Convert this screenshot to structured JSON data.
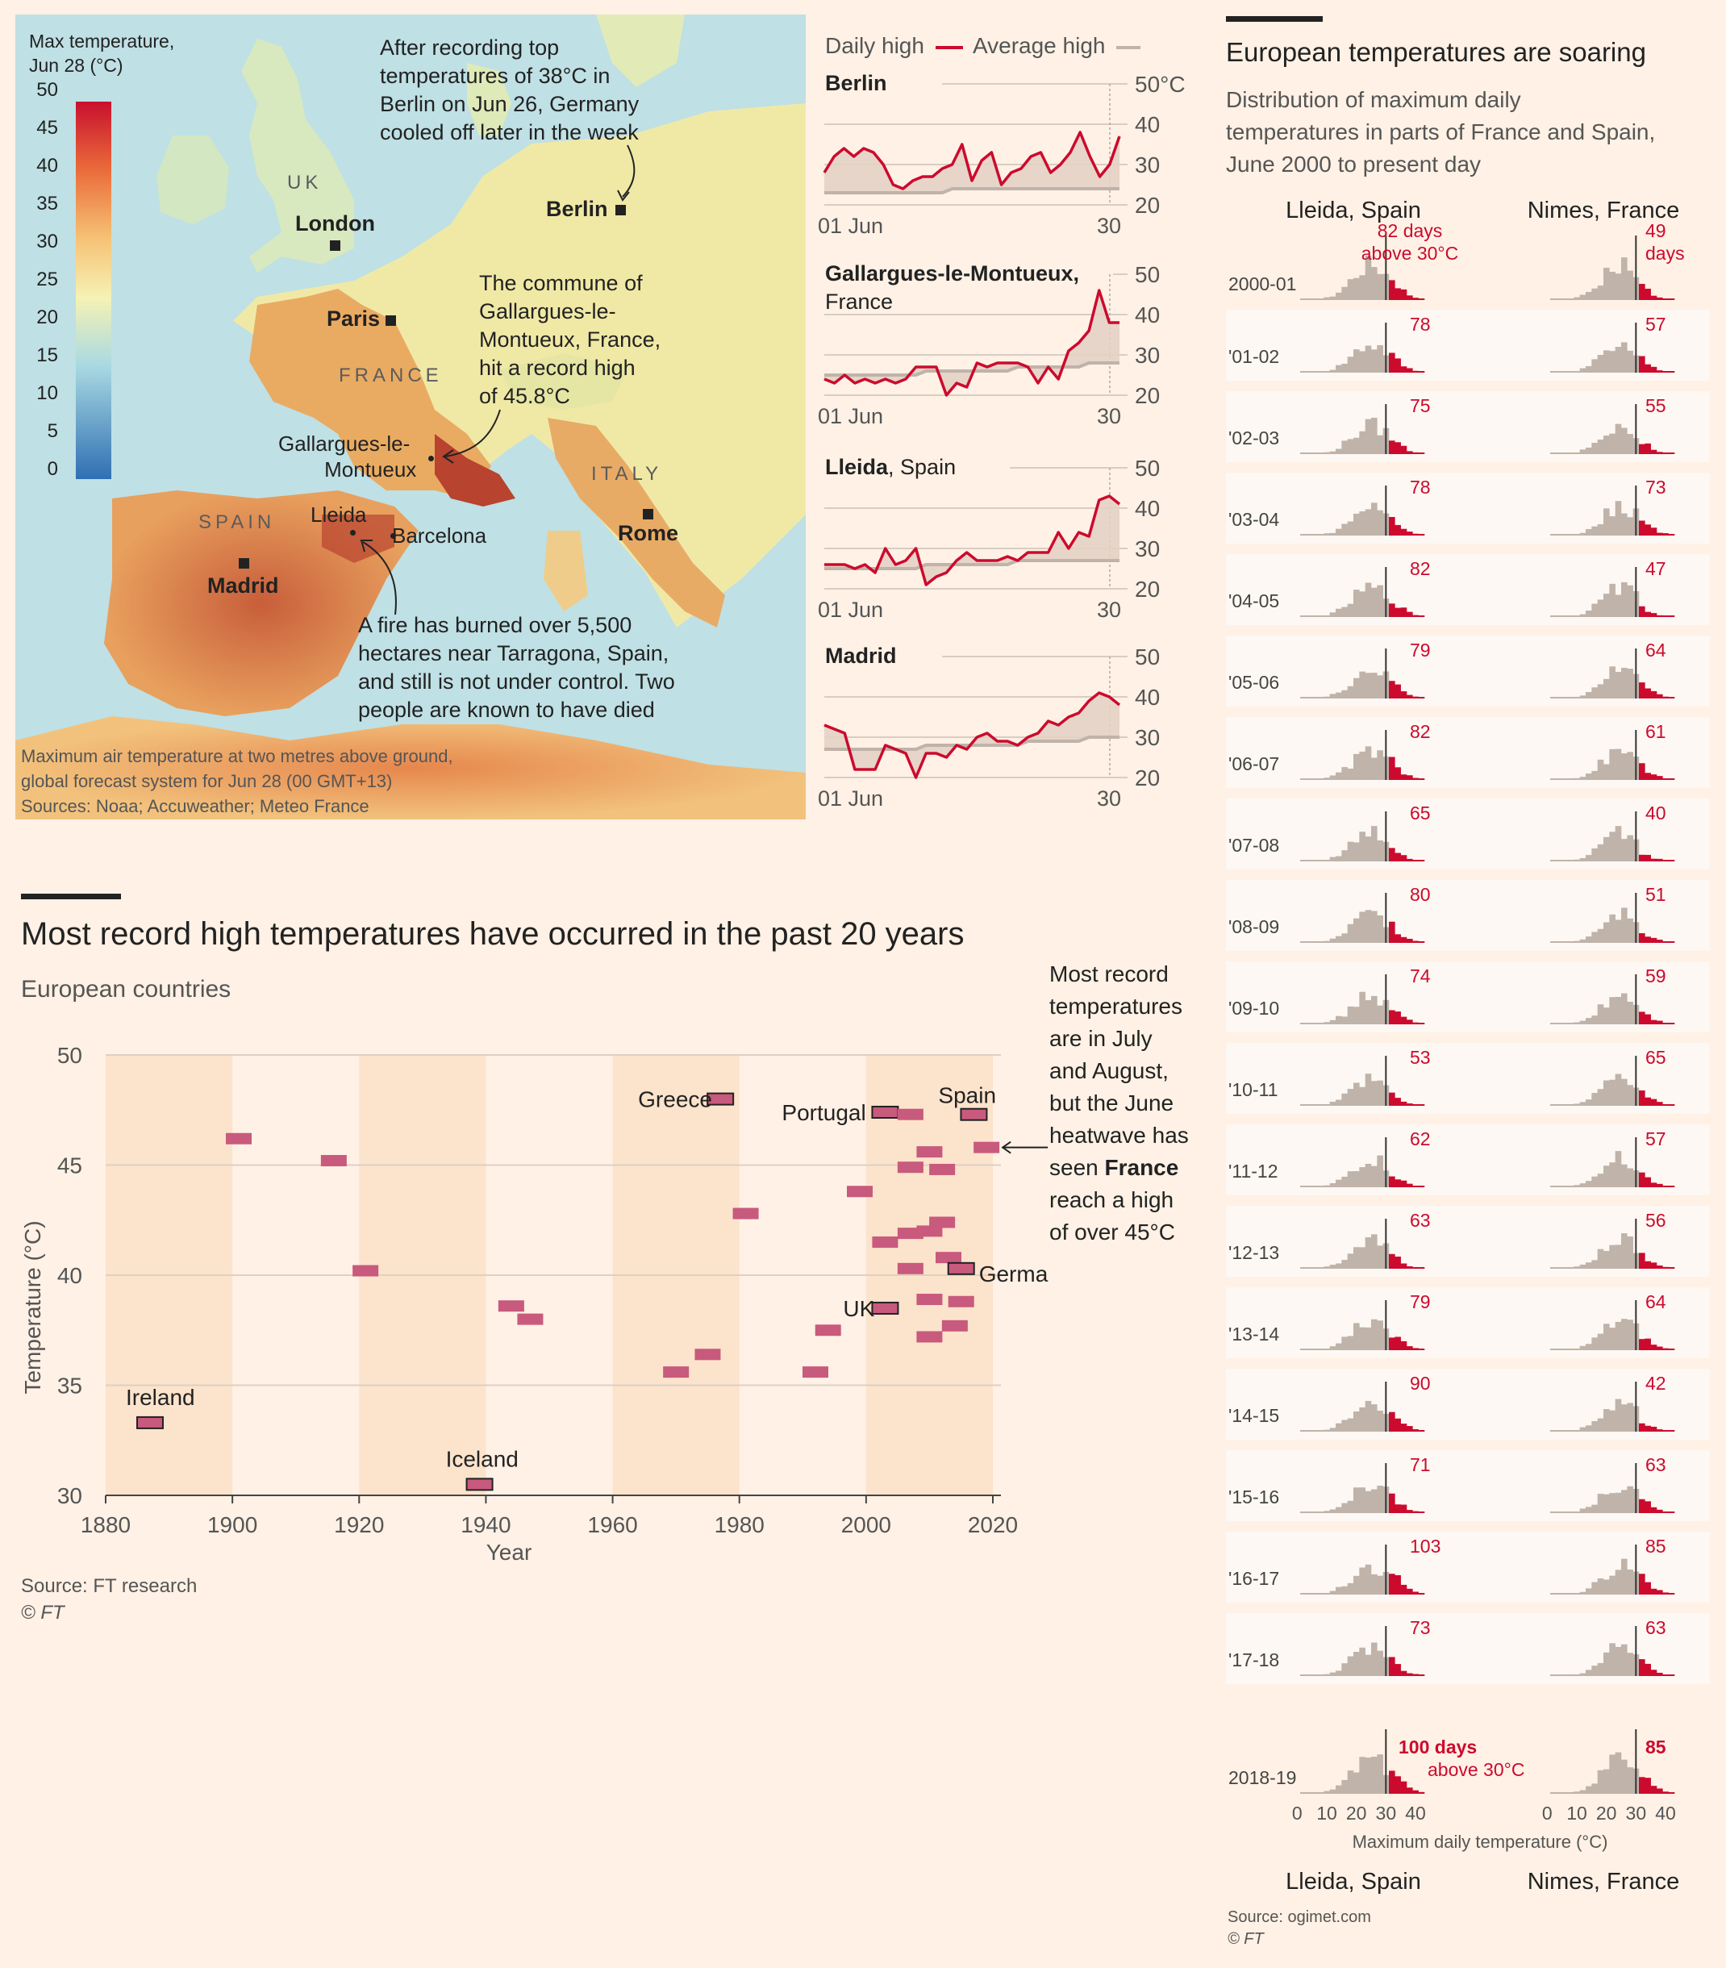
{
  "map": {
    "legend_title_line1": "Max temperature,",
    "legend_title_line2": "Jun 28 (°C)",
    "legend_ticks": [
      "50",
      "45",
      "40",
      "35",
      "30",
      "25",
      "20",
      "15",
      "10",
      "5",
      "0"
    ],
    "country_labels": {
      "uk": "UK",
      "france": "FRANCE",
      "spain": "SPAIN",
      "italy": "ITALY"
    },
    "cities": {
      "london": "London",
      "paris": "Paris",
      "berlin": "Berlin",
      "madrid": "Madrid",
      "rome": "Rome",
      "lleida": "Lleida",
      "barcelona": "Barcelona",
      "gallargues_line1": "Gallargues-le-",
      "gallargues_line2": "Montueux"
    },
    "annotation_berlin": [
      "After recording top",
      "temperatures of 38°C in",
      "Berlin on Jun 26, Germany",
      "cooled off later in the week"
    ],
    "annotation_gallargues": [
      "The commune of",
      "Gallargues-le-",
      "Montueux, France,",
      "hit a record high",
      "of 45.8°C"
    ],
    "annotation_fire": [
      "A fire has burned over 5,500",
      "hectares near Tarragona, Spain,",
      "and still is not under control. Two",
      "people are known to have died"
    ],
    "footnote": [
      "Maximum air temperature at two metres above ground,",
      "global forecast system for Jun 28 (00 GMT+13)",
      "Sources: Noaa; Accuweather; Meteo France"
    ],
    "colors": {
      "sea": "#bfe0e4",
      "land": "#f0e9a6",
      "hot": "#dc7a48",
      "hottest": "#a8322c"
    }
  },
  "small_multiples": {
    "legend_daily": "Daily high",
    "legend_average": "Average high",
    "x_start_label": "01 Jun",
    "x_end_label": "30",
    "panels": [
      {
        "title_bold": "Berlin",
        "title_rest": "",
        "title_line2": "",
        "y_ticks": [
          "50°C",
          "40",
          "30",
          "20"
        ],
        "daily": [
          28,
          32,
          34,
          32,
          34,
          33,
          30,
          25,
          24,
          26,
          27,
          27,
          29,
          30,
          35,
          26,
          31,
          33,
          25,
          28,
          29,
          32,
          33,
          28,
          30,
          33,
          38,
          32,
          27,
          30,
          37
        ],
        "average": [
          23,
          23,
          23,
          23,
          23,
          23,
          23,
          23,
          23,
          23,
          23,
          23,
          23,
          24,
          24,
          24,
          24,
          24,
          24,
          24,
          24,
          24,
          24,
          24,
          24,
          24,
          24,
          24,
          24,
          24,
          24
        ]
      },
      {
        "title_bold": "Gallargues-le-Montueux,",
        "title_rest": "",
        "title_line2": "France",
        "y_ticks": [
          "50",
          "40",
          "30",
          "20"
        ],
        "daily": [
          24,
          23,
          25,
          23,
          24,
          23,
          24,
          23,
          24,
          27,
          27,
          27,
          20,
          23,
          22,
          28,
          27,
          28,
          28,
          28,
          27,
          23,
          27,
          24,
          31,
          33,
          36,
          46,
          38,
          38
        ],
        "average": [
          25,
          25,
          25,
          25,
          25,
          25,
          25,
          25,
          25,
          25,
          26,
          26,
          26,
          26,
          26,
          26,
          26,
          26,
          26,
          27,
          27,
          27,
          27,
          27,
          27,
          27,
          28,
          28,
          28,
          28
        ]
      },
      {
        "title_bold": "Lleida",
        "title_rest": ", Spain",
        "title_line2": "",
        "y_ticks": [
          "50",
          "40",
          "30",
          "20"
        ],
        "daily": [
          26,
          26,
          26,
          25,
          26,
          24,
          30,
          26,
          27,
          30,
          21,
          23,
          24,
          27,
          29,
          27,
          27,
          27,
          28,
          27,
          29,
          29,
          29,
          34,
          30,
          34,
          33,
          42,
          43,
          41
        ],
        "average": [
          25,
          25,
          25,
          25,
          25,
          25,
          25,
          25,
          25,
          25,
          26,
          26,
          26,
          26,
          26,
          26,
          26,
          26,
          26,
          27,
          27,
          27,
          27,
          27,
          27,
          27,
          27,
          27,
          27,
          27
        ]
      },
      {
        "title_bold": "Madrid",
        "title_rest": "",
        "title_line2": "",
        "y_ticks": [
          "50",
          "40",
          "30",
          "20"
        ],
        "daily": [
          33,
          32,
          31,
          22,
          22,
          22,
          28,
          27,
          26,
          20,
          26,
          26,
          25,
          28,
          27,
          30,
          31,
          29,
          29,
          28,
          30,
          31,
          34,
          33,
          35,
          36,
          39,
          41,
          40,
          38
        ],
        "average": [
          27,
          27,
          27,
          27,
          27,
          27,
          27,
          27,
          27,
          27,
          28,
          28,
          28,
          28,
          28,
          28,
          28,
          28,
          28,
          28,
          29,
          29,
          29,
          29,
          29,
          29,
          30,
          30,
          30,
          30
        ]
      }
    ]
  },
  "records": {
    "title": "Most record high temperatures have occurred in the past 20 years",
    "subtitle": "European countries",
    "ylabel": "Temperature (°C)",
    "xlabel": "Year",
    "source": "Source: FT research",
    "copyright": "© FT",
    "annotation": [
      "Most record",
      "temperatures",
      "are in July",
      "and August,",
      "but the June",
      "heatwave has",
      "seen France",
      "reach a high",
      "of over 45°C"
    ],
    "annotation_bold_word": "France",
    "chart_data": {
      "type": "scatter",
      "xlim": [
        1880,
        2020
      ],
      "ylim": [
        30,
        50
      ],
      "x_ticks": [
        1880,
        1900,
        1920,
        1940,
        1960,
        1980,
        2000,
        2020
      ],
      "y_ticks": [
        30,
        35,
        40,
        45,
        50
      ],
      "points": [
        {
          "x": 1887,
          "y": 33.3,
          "label": "Ireland"
        },
        {
          "x": 1901,
          "y": 46.2,
          "label": ""
        },
        {
          "x": 1916,
          "y": 45.2,
          "label": ""
        },
        {
          "x": 1921,
          "y": 40.2,
          "label": ""
        },
        {
          "x": 1939,
          "y": 30.5,
          "label": "Iceland"
        },
        {
          "x": 1944,
          "y": 38.6,
          "label": ""
        },
        {
          "x": 1947,
          "y": 38.0,
          "label": ""
        },
        {
          "x": 1970,
          "y": 35.6,
          "label": ""
        },
        {
          "x": 1975,
          "y": 36.4,
          "label": ""
        },
        {
          "x": 1977,
          "y": 48.0,
          "label": "Greece"
        },
        {
          "x": 1981,
          "y": 42.8,
          "label": ""
        },
        {
          "x": 1992,
          "y": 35.6,
          "label": ""
        },
        {
          "x": 1994,
          "y": 37.5,
          "label": ""
        },
        {
          "x": 1999,
          "y": 43.8,
          "label": ""
        },
        {
          "x": 2003,
          "y": 41.5,
          "label": ""
        },
        {
          "x": 2003,
          "y": 38.5,
          "label": "UK"
        },
        {
          "x": 2003,
          "y": 47.4,
          "label": "Portugal"
        },
        {
          "x": 2007,
          "y": 47.3,
          "label": ""
        },
        {
          "x": 2007,
          "y": 44.9,
          "label": ""
        },
        {
          "x": 2007,
          "y": 41.9,
          "label": ""
        },
        {
          "x": 2007,
          "y": 40.3,
          "label": ""
        },
        {
          "x": 2010,
          "y": 45.6,
          "label": ""
        },
        {
          "x": 2010,
          "y": 42.0,
          "label": ""
        },
        {
          "x": 2010,
          "y": 38.9,
          "label": ""
        },
        {
          "x": 2010,
          "y": 37.2,
          "label": ""
        },
        {
          "x": 2012,
          "y": 44.8,
          "label": ""
        },
        {
          "x": 2012,
          "y": 42.4,
          "label": ""
        },
        {
          "x": 2013,
          "y": 40.8,
          "label": ""
        },
        {
          "x": 2014,
          "y": 37.7,
          "label": ""
        },
        {
          "x": 2015,
          "y": 38.8,
          "label": ""
        },
        {
          "x": 2015,
          "y": 40.3,
          "label": "Germany"
        },
        {
          "x": 2017,
          "y": 47.3,
          "label": "Spain"
        },
        {
          "x": 2019,
          "y": 45.8,
          "label": ""
        }
      ]
    }
  },
  "histograms": {
    "title": "European temperatures are soaring",
    "subtitle": [
      "Distribution of maximum daily",
      "temperatures in parts of France and Spain,",
      "June 2000 to present day"
    ],
    "col_lleida": "Lleida, Spain",
    "col_nimes": "Nimes, France",
    "axis_ticks": [
      "0",
      "10",
      "20",
      "30",
      "40"
    ],
    "axis_label": "Maximum daily temperature (°C)",
    "first_note_lleida": [
      "82 days",
      "above 30°C"
    ],
    "first_note_nimes": [
      "49",
      "days"
    ],
    "last_note_lleida_bold": "100 days",
    "last_note_lleida_rest": "above 30°C",
    "source": "Source: ogimet.com",
    "copyright": "© FT",
    "rows": [
      {
        "season": "2000-01",
        "lleida": 82,
        "nimes": 49
      },
      {
        "season": "'01-02",
        "lleida": 78,
        "nimes": 57
      },
      {
        "season": "'02-03",
        "lleida": 75,
        "nimes": 55
      },
      {
        "season": "'03-04",
        "lleida": 78,
        "nimes": 73
      },
      {
        "season": "'04-05",
        "lleida": 82,
        "nimes": 47
      },
      {
        "season": "'05-06",
        "lleida": 79,
        "nimes": 64
      },
      {
        "season": "'06-07",
        "lleida": 82,
        "nimes": 61
      },
      {
        "season": "'07-08",
        "lleida": 65,
        "nimes": 40
      },
      {
        "season": "'08-09",
        "lleida": 80,
        "nimes": 51
      },
      {
        "season": "'09-10",
        "lleida": 74,
        "nimes": 59
      },
      {
        "season": "'10-11",
        "lleida": 53,
        "nimes": 65
      },
      {
        "season": "'11-12",
        "lleida": 62,
        "nimes": 57
      },
      {
        "season": "'12-13",
        "lleida": 63,
        "nimes": 56
      },
      {
        "season": "'13-14",
        "lleida": 79,
        "nimes": 64
      },
      {
        "season": "'14-15",
        "lleida": 90,
        "nimes": 42
      },
      {
        "season": "'15-16",
        "lleida": 71,
        "nimes": 63
      },
      {
        "season": "'16-17",
        "lleida": 103,
        "nimes": 85
      },
      {
        "season": "'17-18",
        "lleida": 73,
        "nimes": 63
      },
      {
        "season": "2018-19",
        "lleida": 100,
        "nimes": 85
      }
    ]
  },
  "colors": {
    "red": "#cc0a2e",
    "grey": "#bfb3aa",
    "band": "#fce3cc",
    "rowband": "#fdf8f3",
    "record_fill": "#c85a7d"
  }
}
